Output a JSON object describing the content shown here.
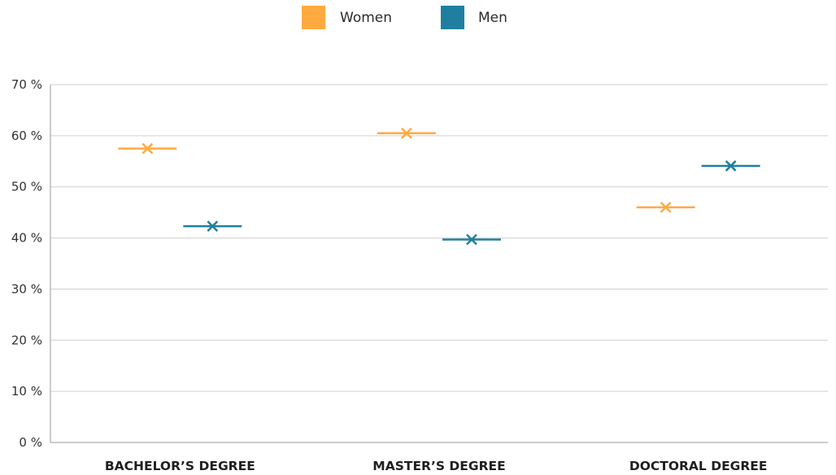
{
  "chart_data": {
    "type": "scatter",
    "title": "",
    "xlabel": "",
    "ylabel": "",
    "categories": [
      "BACHELOR’S DEGREE",
      "MASTER’S DEGREE",
      "DOCTORAL DEGREE"
    ],
    "series": [
      {
        "name": "Women",
        "color": "#FFAA40",
        "values": [
          57.5,
          60.5,
          46
        ]
      },
      {
        "name": "Men",
        "color": "#1F7FA0",
        "values": [
          42.3,
          39.7,
          54.1
        ]
      }
    ],
    "ylim": [
      0,
      70
    ],
    "yticks": [
      0,
      10,
      20,
      30,
      40,
      50,
      60,
      70
    ],
    "ytick_labels": [
      "0 %",
      "10 %",
      "20 %",
      "30 %",
      "40 %",
      "50 %",
      "60 %",
      "70 %"
    ],
    "grid": true,
    "legend_position": "top-center",
    "marker": "x-with-horizontal-bar"
  }
}
